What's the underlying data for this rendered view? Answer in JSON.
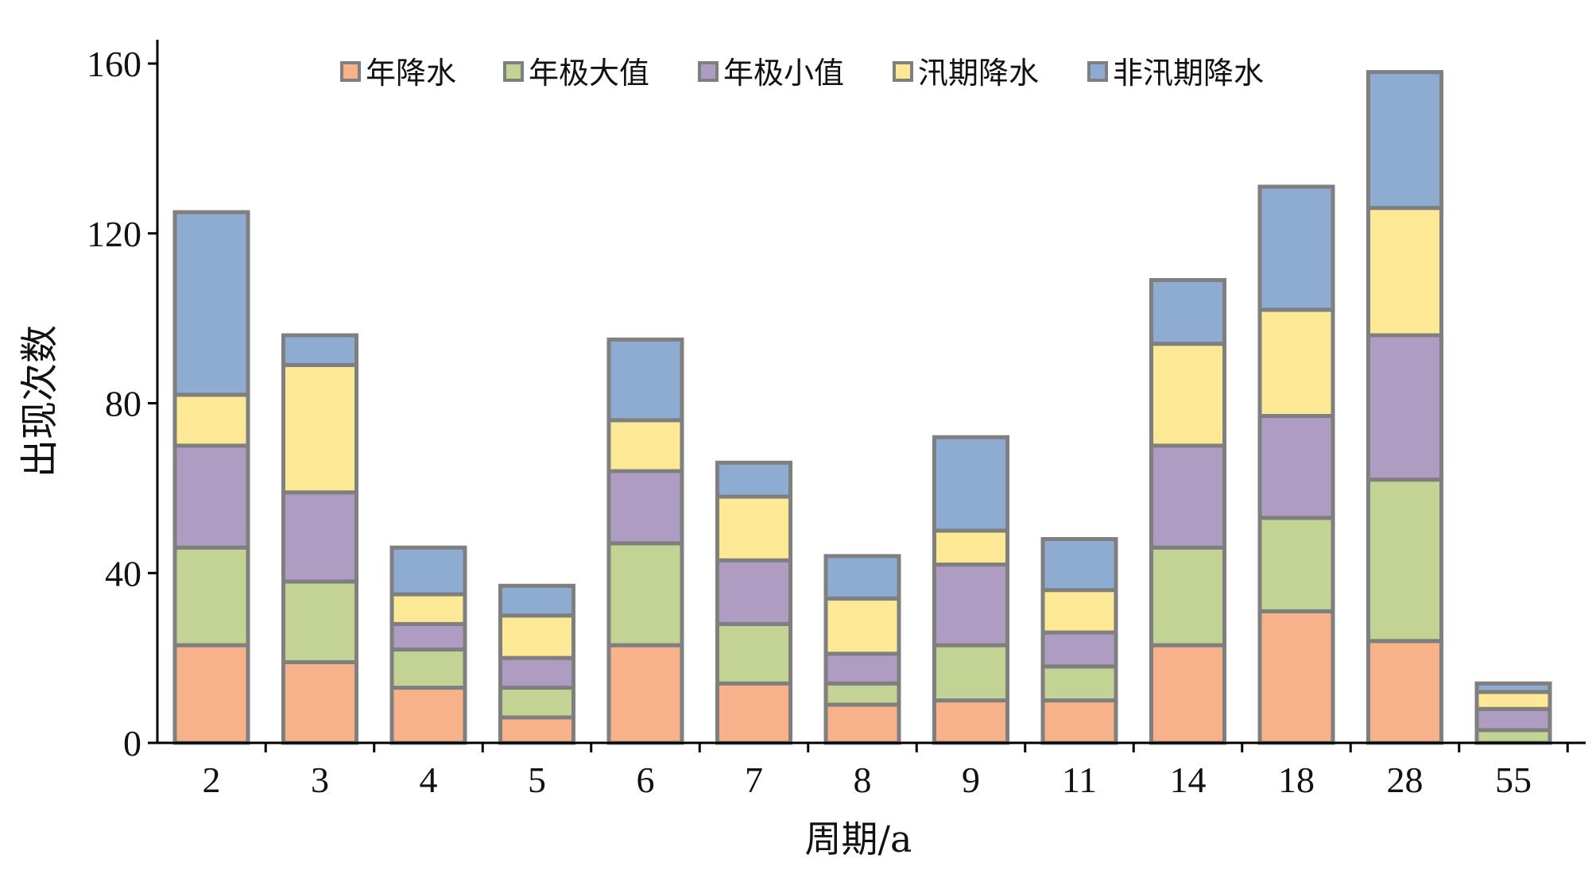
{
  "chart_data": {
    "type": "bar",
    "stacked": true,
    "xlabel": "周期/a",
    "ylabel": "出现次数",
    "ylim": [
      0,
      160
    ],
    "yticks": [
      0,
      40,
      80,
      120,
      160
    ],
    "grid": false,
    "legend_position": "top",
    "categories": [
      "2",
      "3",
      "4",
      "5",
      "6",
      "7",
      "8",
      "9",
      "11",
      "14",
      "18",
      "28",
      "55"
    ],
    "series": [
      {
        "name": "年降水",
        "color": "#F7B28A",
        "values": [
          23,
          19,
          13,
          6,
          23,
          14,
          9,
          10,
          10,
          23,
          31,
          24,
          0
        ]
      },
      {
        "name": "年极大值",
        "color": "#C3D393",
        "values": [
          23,
          19,
          9,
          7,
          24,
          14,
          5,
          13,
          8,
          23,
          22,
          38,
          3
        ]
      },
      {
        "name": "年极小值",
        "color": "#AE9CC3",
        "values": [
          24,
          21,
          6,
          7,
          17,
          15,
          7,
          19,
          8,
          24,
          24,
          34,
          5
        ]
      },
      {
        "name": "汛期降水",
        "color": "#FDE995",
        "values": [
          12,
          30,
          7,
          10,
          12,
          15,
          13,
          8,
          10,
          24,
          25,
          30,
          4
        ]
      },
      {
        "name": "非汛期降水",
        "color": "#8EABD2",
        "values": [
          43,
          7,
          11,
          7,
          19,
          8,
          10,
          22,
          12,
          15,
          29,
          32,
          2
        ]
      }
    ]
  }
}
